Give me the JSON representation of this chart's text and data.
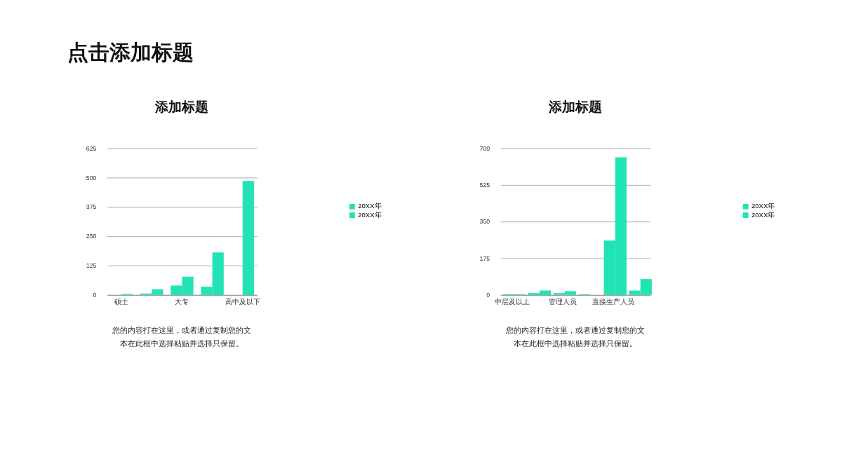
{
  "chart_data": [
    {
      "type": "bar",
      "title": "添加标题",
      "categories": [
        "硕士",
        null,
        "大专",
        null,
        "高中及以下"
      ],
      "series": [
        {
          "name": "20XX年",
          "color": "#22e3b4",
          "values": [
            null,
            6,
            40,
            35,
            null
          ]
        },
        {
          "name": "20XX年",
          "color": "#22e3b4",
          "values": [
            4,
            24,
            78,
            181,
            486
          ]
        }
      ],
      "ylim": [
        0,
        625
      ],
      "yticks": [
        0,
        125,
        250,
        375,
        500,
        625
      ],
      "grid": "y",
      "legend": "right",
      "annotations": [
        "点击添加标题",
        "您的内容打在这里，或者通过复制您的文本在此框中选择粘贴并选择只保留。"
      ]
    },
    {
      "type": "bar",
      "title": "添加标题",
      "categories": [
        "中层及以上",
        null,
        "管理人员",
        null,
        "直接生产人员",
        null
      ],
      "series": [
        {
          "name": "20XX年",
          "color": "#22e3b4",
          "values": [
            3,
            9,
            9,
            3,
            260,
            21
          ]
        },
        {
          "name": "20XX年",
          "color": "#22e3b4",
          "values": [
            3,
            21,
            18,
            null,
            657,
            76
          ]
        }
      ],
      "ylim": [
        0,
        700
      ],
      "yticks": [
        0,
        175,
        350,
        525,
        700
      ],
      "grid": "y",
      "legend": "right",
      "annotations": [
        "您的内容打在这里，或者通过复制您的文本在此框中选择粘贴并选择只保留。"
      ]
    }
  ]
}
